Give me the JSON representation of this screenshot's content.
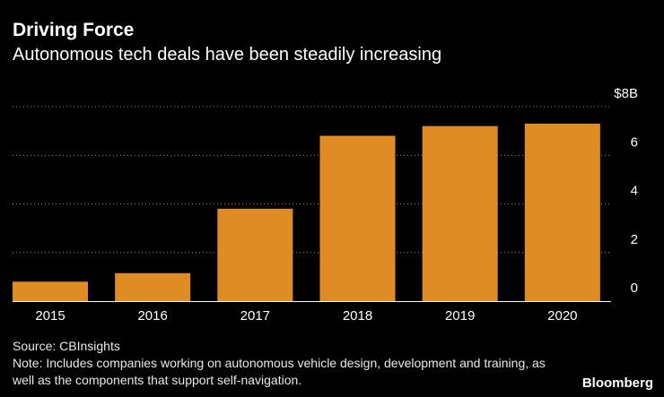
{
  "header": {
    "title": "Driving Force",
    "subtitle": "Autonomous tech deals have been steadily increasing"
  },
  "chart_data": {
    "type": "bar",
    "categories": [
      "2015",
      "2016",
      "2017",
      "2018",
      "2019",
      "2020"
    ],
    "values": [
      0.8,
      1.15,
      3.8,
      6.8,
      7.2,
      7.3
    ],
    "ylim": [
      0,
      8
    ],
    "yticks": [
      0,
      2,
      4,
      6,
      8
    ],
    "ytick_labels": [
      "0",
      "2",
      "4",
      "6",
      "$8B"
    ],
    "y_axis_side": "right",
    "grid": true,
    "bar_color": "#e08c24",
    "title": "Driving Force",
    "subtitle": "Autonomous tech deals have been steadily increasing",
    "xlabel": "",
    "ylabel": ""
  },
  "footer": {
    "source": "Source: CBInsights",
    "note": "Note: Includes companies working on autonomous vehicle design, development and training, as well as the components that support self-navigation.",
    "brand": "Bloomberg"
  },
  "colors": {
    "background": "#000000",
    "bar": "#e08c24",
    "grid": "#8a8a8a",
    "text": "#ffffff"
  }
}
